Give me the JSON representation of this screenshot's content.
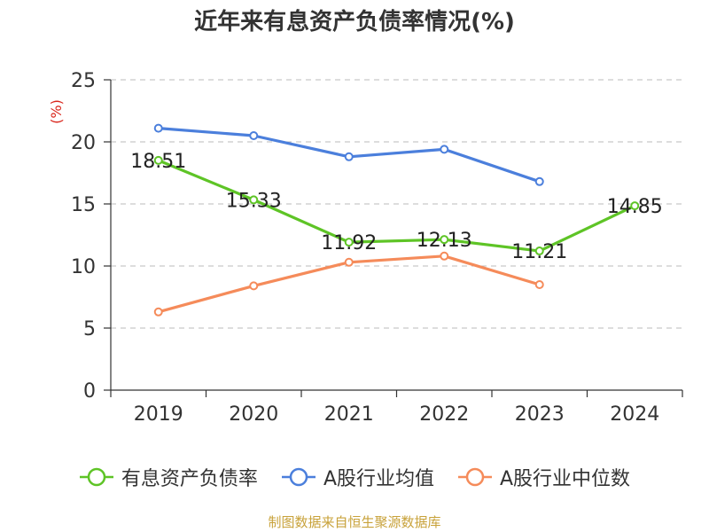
{
  "title": "近年来有息资产负债率情况(%)",
  "source": "制图数据来自恒生聚源数据库",
  "chart_data": {
    "type": "line",
    "title": "近年来有息资产负债率情况(%)",
    "ylabel": "(%)",
    "xlabel": "",
    "categories": [
      "2019",
      "2020",
      "2021",
      "2022",
      "2023",
      "2024"
    ],
    "ylim": [
      0,
      25
    ],
    "yticks": [
      0,
      5,
      10,
      15,
      20,
      25
    ],
    "grid": "horizontal-dashed",
    "legend_position": "bottom",
    "series": [
      {
        "name": "有息资产负债率",
        "color": "#5ec426",
        "labels": true,
        "values": [
          18.51,
          15.33,
          11.92,
          12.13,
          11.21,
          14.85
        ],
        "value_labels": [
          "18.51",
          "15.33",
          "11.92",
          "12.13",
          "11.21",
          "14.85"
        ]
      },
      {
        "name": "A股行业均值",
        "color": "#4b7fdc",
        "labels": false,
        "values": [
          21.1,
          20.5,
          18.8,
          19.4,
          16.8,
          null
        ]
      },
      {
        "name": "A股行业中位数",
        "color": "#f58b5a",
        "labels": false,
        "values": [
          6.3,
          8.4,
          10.3,
          10.8,
          8.5,
          null
        ]
      }
    ]
  }
}
